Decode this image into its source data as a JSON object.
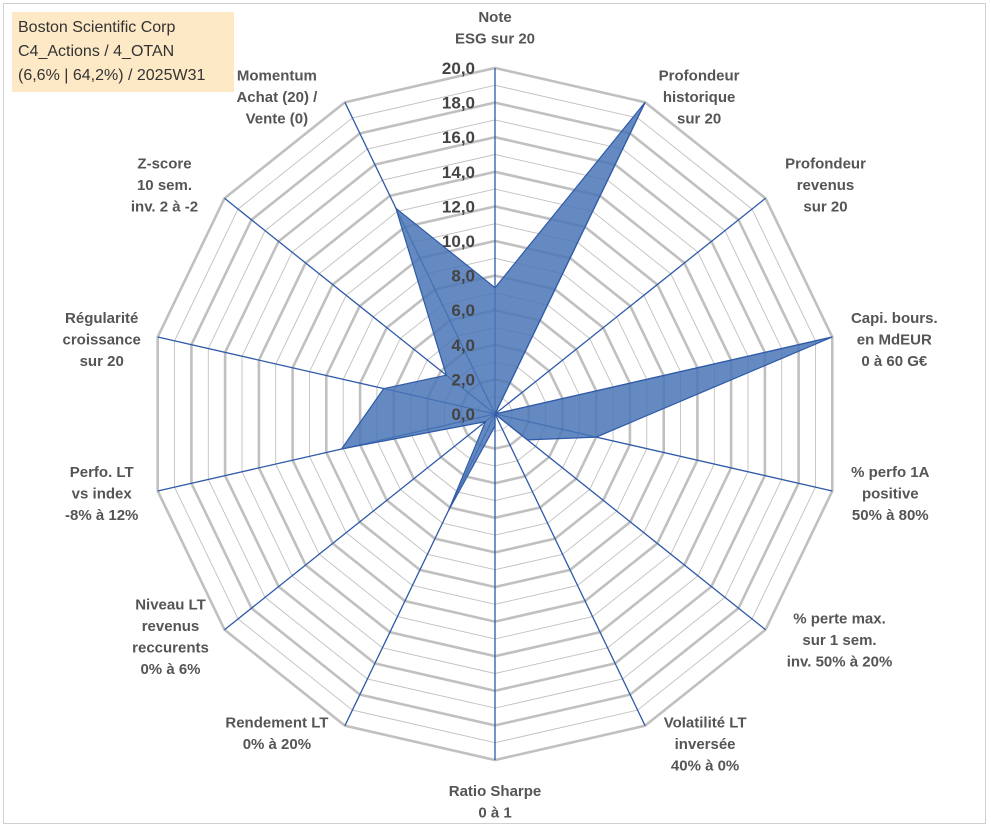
{
  "info": {
    "line1": "Boston Scientific Corp",
    "line2": "C4_Actions / 4_OTAN",
    "line3": "(6,6% | 64,2%) / 2025W31"
  },
  "colors": {
    "grid": "#c0c0c0",
    "spoke": "#2f5aa8",
    "fill": "#4a76b6",
    "infobox": "#fde9c6"
  },
  "chart_data": {
    "type": "radar",
    "title": "",
    "range": [
      0,
      20
    ],
    "grid_step": 1,
    "tick_step": 2,
    "tick_labels": [
      "0,0",
      "2,0",
      "4,0",
      "6,0",
      "8,0",
      "10,0",
      "12,0",
      "14,0",
      "16,0",
      "18,0",
      "20,0"
    ],
    "axes": [
      {
        "label": [
          "Note",
          "ESG sur 20"
        ],
        "value": 7.3
      },
      {
        "label": [
          "Profondeur",
          "historique",
          "sur 20"
        ],
        "value": 20.0
      },
      {
        "label": [
          "Profondeur",
          "revenus",
          "sur 20"
        ],
        "value": 0.0
      },
      {
        "label": [
          "Capi. bours.",
          "en MdEUR",
          "0 à 60 G€"
        ],
        "value": 20.0
      },
      {
        "label": [
          "% perfo 1A",
          "positive",
          "50% à 80%"
        ],
        "value": 6.0
      },
      {
        "label": [
          "% perte max.",
          "sur 1 sem.",
          "inv. 50% à 20%"
        ],
        "value": 2.4
      },
      {
        "label": [
          "Volatilité LT",
          "inversée",
          "40% à 0%"
        ],
        "value": 0.0
      },
      {
        "label": [
          "Ratio Sharpe",
          "0 à 1"
        ],
        "value": 0.7
      },
      {
        "label": [
          "Rendement LT",
          "0% à 20%"
        ],
        "value": 6.2
      },
      {
        "label": [
          "Niveau LT",
          "revenus",
          "reccurents",
          "0% à 6%"
        ],
        "value": 0.7
      },
      {
        "label": [
          "Perfo. LT",
          "vs index",
          "-8% à 12%"
        ],
        "value": 9.1
      },
      {
        "label": [
          "Régularité",
          "croissance",
          "sur 20"
        ],
        "value": 6.6
      },
      {
        "label": [
          "Z-score",
          "10 sem.",
          "inv. 2 à -2"
        ],
        "value": 3.6
      },
      {
        "label": [
          "Momentum",
          "Achat (20) /",
          "Vente (0)"
        ],
        "value": 13.2
      }
    ]
  }
}
